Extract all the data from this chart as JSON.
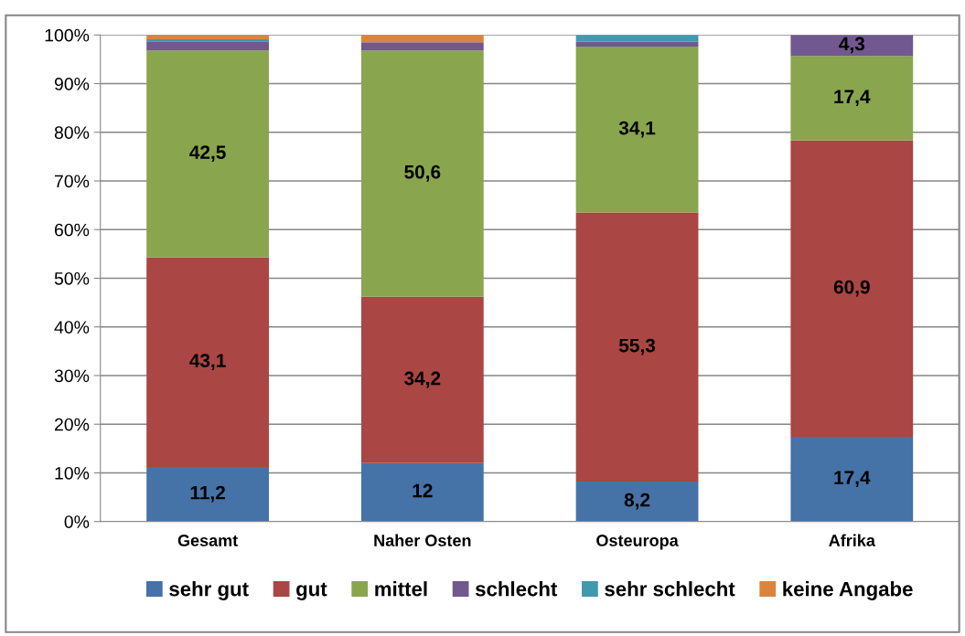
{
  "chart_data": {
    "type": "bar",
    "stacked": true,
    "categories": [
      "Gesamt",
      "Naher Osten",
      "Osteuropa",
      "Afrika"
    ],
    "series": [
      {
        "name": "sehr gut",
        "color": "#4572a7",
        "values": [
          11.2,
          12,
          8.2,
          17.4
        ],
        "value_labels": [
          "11,2",
          "12",
          "8,2",
          "17,4"
        ]
      },
      {
        "name": "gut",
        "color": "#aa4643",
        "values": [
          43.1,
          34.2,
          55.3,
          60.9
        ],
        "value_labels": [
          "43,1",
          "34,2",
          "55,3",
          "60,9"
        ]
      },
      {
        "name": "mittel",
        "color": "#89a54e",
        "values": [
          42.5,
          50.6,
          34.1,
          17.4
        ],
        "value_labels": [
          "42,5",
          "50,6",
          "34,1",
          "17,4"
        ]
      },
      {
        "name": "schlecht",
        "color": "#71588f",
        "values": [
          1.9,
          1.7,
          1.0,
          4.3
        ],
        "value_labels": [
          null,
          null,
          null,
          "4,3"
        ]
      },
      {
        "name": "sehr schlecht",
        "color": "#4198af",
        "values": [
          0.4,
          0,
          1.4,
          0
        ],
        "value_labels": [
          null,
          null,
          null,
          null
        ]
      },
      {
        "name": "keine Angabe",
        "color": "#db843d",
        "values": [
          0.9,
          1.5,
          0,
          0
        ],
        "value_labels": [
          null,
          null,
          null,
          null
        ]
      }
    ],
    "ylim": [
      0,
      100
    ],
    "yticks": [
      {
        "value": 0,
        "label": "0%"
      },
      {
        "value": 10,
        "label": "10%"
      },
      {
        "value": 20,
        "label": "20%"
      },
      {
        "value": 30,
        "label": "30%"
      },
      {
        "value": 40,
        "label": "40%"
      },
      {
        "value": 50,
        "label": "50%"
      },
      {
        "value": 60,
        "label": "60%"
      },
      {
        "value": 70,
        "label": "70%"
      },
      {
        "value": 80,
        "label": "80%"
      },
      {
        "value": 90,
        "label": "90%"
      },
      {
        "value": 100,
        "label": "100%"
      }
    ],
    "grid": "y",
    "legend": "bottom"
  }
}
